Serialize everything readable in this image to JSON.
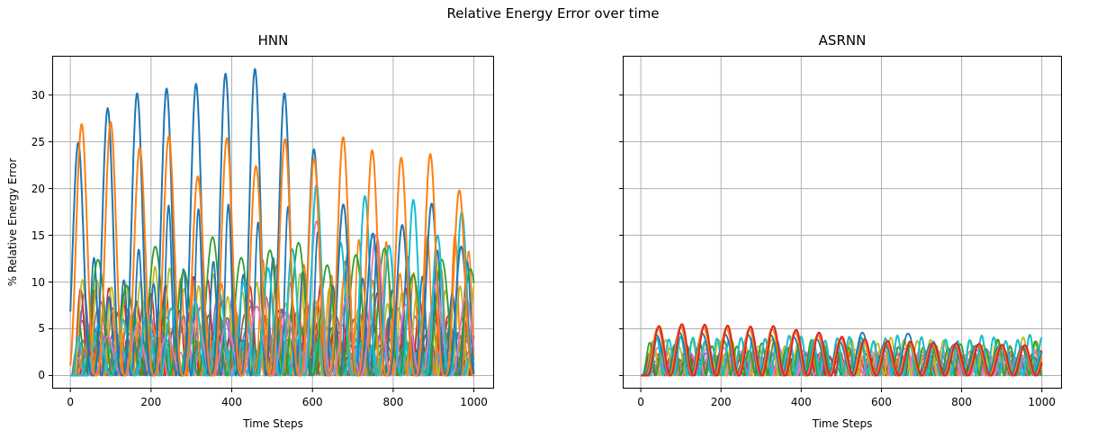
{
  "figure": {
    "suptitle": "Relative Energy Error over time",
    "background": "#ffffff",
    "grid_color": "#b0b0b0",
    "spine_color": "#000000"
  },
  "chart_data": [
    {
      "type": "line",
      "title": "HNN",
      "xlabel": "Time Steps",
      "ylabel": "% Relative Energy Error",
      "xlim": [
        -45,
        1050
      ],
      "ylim": [
        -1.4,
        34.2
      ],
      "xticks": [
        0,
        200,
        400,
        600,
        800,
        1000
      ],
      "yticks": [
        0,
        5,
        10,
        15,
        20,
        25,
        30
      ],
      "show_ytick_labels": true,
      "grid": true,
      "x_range_of_data": [
        0,
        1000
      ],
      "description": "Many overlapping oscillating relative-energy-error traces; tallest blue peaks grow from ~25% to ~33% near t=435 then decay; orange stays ~24-27%; teal grows to ~20%; remaining traces oscillate below ~18%.",
      "series": [
        {
          "name": "hnn-gray-1",
          "color": "#7f7f7f",
          "period": 38,
          "phase": 10,
          "sharp": 1.5,
          "lw": 1.6,
          "amp_start": 7,
          "amp_end": 5.5,
          "var": 1.5,
          "seed": 11
        },
        {
          "name": "hnn-brown-1",
          "color": "#8c564b",
          "period": 45,
          "phase": 6,
          "sharp": 1.5,
          "lw": 1.6,
          "amp_start": 6.5,
          "amp_end": 5,
          "var": 1.5,
          "seed": 12
        },
        {
          "name": "hnn-purple-1",
          "color": "#9467bd",
          "period": 41,
          "phase": 14,
          "sharp": 1.8,
          "lw": 1.6,
          "amp_start": 8.5,
          "amp_end": 6,
          "var": 1.8,
          "seed": 13
        },
        {
          "name": "hnn-red-1",
          "color": "#d62728",
          "period": 35,
          "phase": 8,
          "sharp": 1.8,
          "lw": 1.6,
          "amp_start": 9.5,
          "amp_end": 7,
          "var": 2,
          "seed": 14
        },
        {
          "name": "hnn-red-2",
          "color": "#d62728",
          "period": 21,
          "phase": 4,
          "sharp": 1.2,
          "lw": 1.6,
          "amp_start": 3.2,
          "amp_end": 2.6,
          "var": 1,
          "seed": 15
        },
        {
          "name": "hnn-purple-2",
          "color": "#9467bd",
          "period": 55,
          "phase": 25,
          "sharp": 1.6,
          "lw": 1.6,
          "amp_start": 5.5,
          "amp_end": 4,
          "var": 1.2,
          "seed": 16
        },
        {
          "name": "hnn-brown-2",
          "color": "#8c564b",
          "period": 60,
          "phase": 30,
          "sharp": 1.5,
          "lw": 1.6,
          "amp_start": 4.5,
          "amp_end": 4,
          "var": 1,
          "seed": 17
        },
        {
          "name": "hnn-gray-2",
          "color": "#7f7f7f",
          "period": 29,
          "phase": 16,
          "sharp": 1.3,
          "lw": 1.6,
          "amp_start": 4,
          "amp_end": 3,
          "var": 1,
          "seed": 18
        },
        {
          "name": "hnn-pink-2",
          "color": "#e377c2",
          "period": 23,
          "phase": 9,
          "sharp": 1.2,
          "lw": 1.6,
          "amp_start": 2.6,
          "amp_end": 2.2,
          "var": 0.8,
          "seed": 19
        },
        {
          "name": "hnn-green-2",
          "color": "#2ca02c",
          "period": 24,
          "phase": 11,
          "sharp": 1.2,
          "lw": 1.6,
          "amp_start": 4.6,
          "amp_end": 3.6,
          "var": 1.2,
          "seed": 20
        },
        {
          "name": "hnn-olive-1",
          "color": "#bcbd22",
          "period": 36,
          "phase": 12,
          "sharp": 1.6,
          "lw": 1.8,
          "amp_start": 10.5,
          "amp_end": 8,
          "var": 2,
          "seed": 21
        },
        {
          "name": "hnn-cyan-2",
          "color": "#17becf",
          "period": 27,
          "phase": 6,
          "sharp": 1.3,
          "lw": 2,
          "amp_start": 3.8,
          "amp_end": 3,
          "var": 1,
          "seed": 22
        },
        {
          "name": "hnn-orange-2",
          "color": "#ff7f0e",
          "period": 34,
          "phase": 18,
          "sharp": 1.9,
          "lw": 1.6,
          "amp_start": 5.5,
          "amp_end": 15,
          "var": 3,
          "seed": 23
        },
        {
          "name": "hnn-blue-2",
          "color": "#1f77b4",
          "period": 37,
          "phase": 40,
          "sharp": 2.2,
          "lw": 1.8,
          "peaks": [
            12.6,
            8.4,
            10.2,
            13.5,
            9.8,
            18.2,
            11.4,
            17.8,
            12.2,
            18.3,
            10.8,
            16.4,
            12.6,
            18.1,
            11.2,
            15.4,
            9.6,
            13.2,
            10.4,
            14.6,
            9.2,
            12.8,
            10.6,
            13.4,
            8.8,
            12.2
          ]
        },
        {
          "name": "hnn-green-1",
          "color": "#2ca02c",
          "period": 71,
          "phase": 33,
          "sharp": 2.0,
          "lw": 1.8,
          "peaks": [
            12.4,
            9.6,
            13.8,
            11.2,
            14.8,
            12.6,
            13.4,
            14.2,
            11.8,
            12.9,
            13.6,
            10.8,
            12.4,
            11.4
          ]
        },
        {
          "name": "hnn-pink-1",
          "color": "#e377c2",
          "period": 74,
          "phase": 55,
          "sharp": 2.6,
          "lw": 1.8,
          "peaks": [
            4.2,
            5.1,
            4.4,
            6.2,
            5.6,
            7.4,
            6.8,
            16.5,
            8.2,
            15.1,
            7.6,
            9.8,
            8.4,
            7.2
          ]
        },
        {
          "name": "hnn-cyan-1",
          "color": "#17becf",
          "period": 60,
          "phase": 40,
          "sharp": 2.6,
          "lw": 2,
          "peaks": [
            5.5,
            6.0,
            6.6,
            7.2,
            7.9,
            8.8,
            10.0,
            11.5,
            13.5,
            20.4,
            14.2,
            19.2,
            13.9,
            18.8,
            15.0,
            17.5,
            19.7
          ]
        },
        {
          "name": "hnn-blue-1",
          "color": "#1f77b4",
          "period": 73,
          "phase": -17,
          "sharp": 3.2,
          "lw": 2,
          "peaks": [
            24.9,
            28.6,
            30.2,
            30.7,
            31.2,
            32.3,
            32.8,
            30.2,
            24.2,
            18.3,
            15.2,
            16.1,
            18.4,
            13.8
          ]
        },
        {
          "name": "hnn-orange-1",
          "color": "#ff7f0e",
          "period": 72,
          "phase": -8,
          "sharp": 3.0,
          "lw": 2,
          "peaks": [
            26.9,
            27.1,
            24.4,
            25.6,
            21.3,
            25.4,
            22.4,
            25.3,
            23.2,
            25.5,
            24.1,
            23.3,
            23.7,
            19.8
          ]
        }
      ]
    },
    {
      "type": "line",
      "title": "ASRNN",
      "xlabel": "Time Steps",
      "ylabel": "",
      "xlim": [
        -45,
        1050
      ],
      "ylim": [
        -1.4,
        34.2
      ],
      "xticks": [
        0,
        200,
        400,
        600,
        800,
        1000
      ],
      "yticks": [
        0,
        5,
        10,
        15,
        20,
        25,
        30
      ],
      "show_ytick_labels": false,
      "grid": true,
      "x_range_of_data": [
        0,
        1000
      ],
      "description": "Same traces for ASRNN stay far lower: red/orange peaks ~5.5% early decaying to ~3.2%; teal/olive/green ~3-4% throughout; all others below ~3%.",
      "series": [
        {
          "name": "asrnn-gray-1",
          "color": "#7f7f7f",
          "period": 26,
          "phase": 8,
          "sharp": 1.2,
          "lw": 1.6,
          "amp_start": 1.8,
          "amp_end": 1.6,
          "var": 0.4,
          "seed": 31
        },
        {
          "name": "asrnn-brown-1",
          "color": "#8c564b",
          "period": 30,
          "phase": 5,
          "sharp": 1.3,
          "lw": 1.6,
          "amp_start": 2.3,
          "amp_end": 2.1,
          "var": 0.5,
          "seed": 32
        },
        {
          "name": "asrnn-purple-1",
          "color": "#9467bd",
          "period": 28,
          "phase": 9,
          "sharp": 1.3,
          "lw": 1.6,
          "amp_start": 2.1,
          "amp_end": 1.9,
          "var": 0.5,
          "seed": 33
        },
        {
          "name": "asrnn-green-2",
          "color": "#2ca02c",
          "period": 23,
          "phase": 15,
          "sharp": 1.2,
          "lw": 1.6,
          "amp_start": 1.9,
          "amp_end": 1.7,
          "var": 0.5,
          "seed": 34
        },
        {
          "name": "asrnn-cyan-2",
          "color": "#17becf",
          "period": 22,
          "phase": 4,
          "sharp": 1.2,
          "lw": 1.6,
          "amp_start": 1.5,
          "amp_end": 1.8,
          "var": 0.4,
          "seed": 35
        },
        {
          "name": "asrnn-red-2",
          "color": "#d62728",
          "period": 25,
          "phase": 10,
          "sharp": 1.2,
          "lw": 1.6,
          "amp_start": 2.0,
          "amp_end": 2.2,
          "var": 0.5,
          "seed": 36
        },
        {
          "name": "asrnn-orange-2",
          "color": "#ff7f0e",
          "period": 35,
          "phase": 20,
          "sharp": 1.4,
          "lw": 1.6,
          "amp_start": 2.4,
          "amp_end": 2.2,
          "var": 0.5,
          "seed": 37
        },
        {
          "name": "asrnn-pink-2",
          "color": "#e377c2",
          "period": 41,
          "phase": 22,
          "sharp": 1.4,
          "lw": 1.6,
          "amp_start": 2.8,
          "amp_end": 2.4,
          "var": 0.4,
          "seed": 38
        },
        {
          "name": "asrnn-pink-1",
          "color": "#e377c2",
          "period": 29,
          "phase": 12,
          "sharp": 1.3,
          "lw": 1.8,
          "amp_start": 2.7,
          "amp_end": 2.5,
          "var": 0.5,
          "seed": 39
        },
        {
          "name": "asrnn-olive-1",
          "color": "#bcbd22",
          "period": 33,
          "phase": 13,
          "sharp": 1.5,
          "lw": 1.8,
          "amp_start": 3.5,
          "amp_end": 3.7,
          "var": 0.5,
          "seed": 40
        },
        {
          "name": "asrnn-green-1",
          "color": "#2ca02c",
          "period": 31,
          "phase": 7,
          "sharp": 1.5,
          "lw": 1.8,
          "amp_start": 3.1,
          "amp_end": 3.5,
          "var": 0.6,
          "seed": 41
        },
        {
          "name": "asrnn-cyan-1",
          "color": "#17becf",
          "period": 30,
          "phase": 25,
          "sharp": 1.5,
          "lw": 2,
          "amp_start": 3.9,
          "amp_end": 4.1,
          "var": 0.4,
          "seed": 42
        },
        {
          "name": "asrnn-blue-1",
          "color": "#1f77b4",
          "period": 57,
          "phase": 11,
          "sharp": 1.8,
          "lw": 1.8,
          "peaks": [
            4.3,
            4.6,
            4.5,
            4.4,
            4.35,
            4.3,
            4.1,
            3.9,
            3.6,
            4.6,
            3.5,
            4.5,
            3.4,
            3.3,
            3.25,
            3.2,
            3.15,
            3.1
          ]
        },
        {
          "name": "asrnn-orange-1",
          "color": "#ff7f0e",
          "period": 57,
          "phase": 14,
          "sharp": 2.0,
          "lw": 2,
          "peaks": [
            5.1,
            5.25,
            5.2,
            5.1,
            5.0,
            5.05,
            4.7,
            4.35,
            3.95,
            3.7,
            3.5,
            3.4,
            3.35,
            3.3,
            3.25,
            3.2,
            3.15,
            3.1
          ]
        },
        {
          "name": "asrnn-red-1",
          "color": "#d62728",
          "period": 57,
          "phase": 17,
          "sharp": 2.2,
          "lw": 2,
          "peaks": [
            5.3,
            5.5,
            5.45,
            5.35,
            5.25,
            5.3,
            4.9,
            4.6,
            4.15,
            3.9,
            3.7,
            3.6,
            3.5,
            3.45,
            3.4,
            3.3,
            3.25,
            3.2
          ]
        }
      ]
    }
  ]
}
